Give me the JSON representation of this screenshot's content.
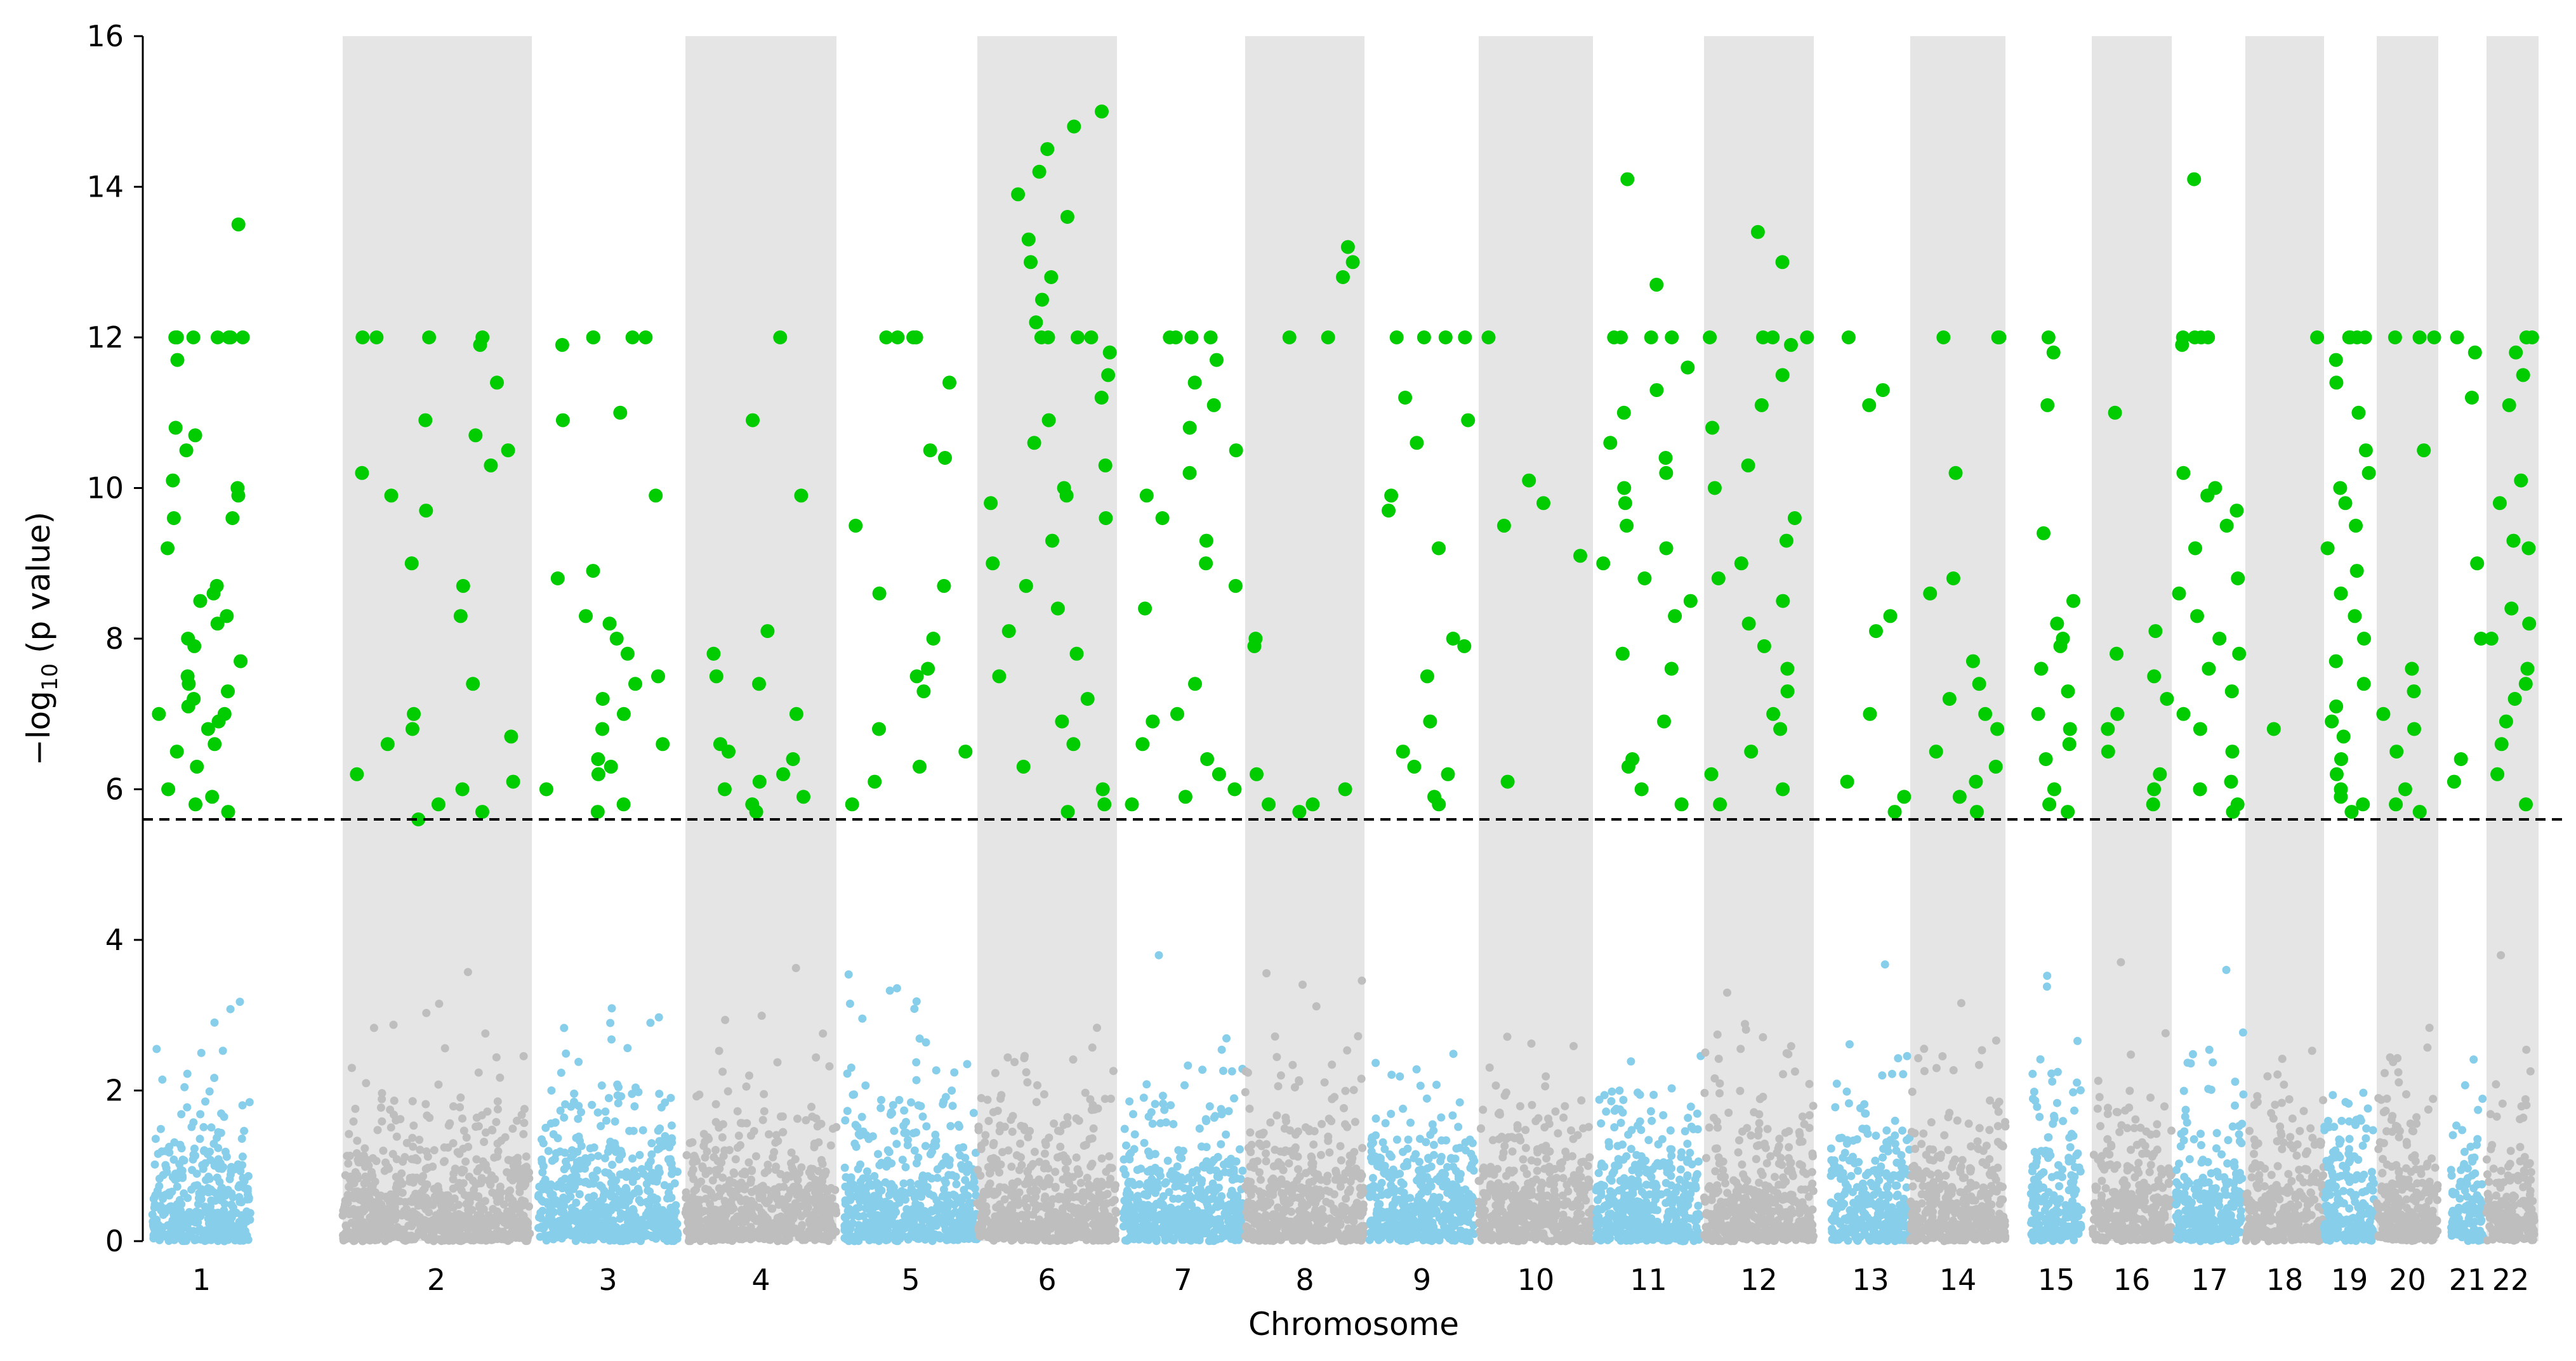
{
  "chart_data": {
    "type": "scatter",
    "subtype": "manhattan",
    "title": "",
    "xlabel": "Chromosome",
    "ylabel": "−log10 (p value)",
    "ylabel_parts": {
      "prefix": "−log",
      "subscript": "10",
      "suffix": " (p value)"
    },
    "ylim": [
      0,
      16
    ],
    "yticks": [
      "0",
      "2",
      "4",
      "6",
      "8",
      "10",
      "12",
      "14",
      "16"
    ],
    "threshold": 5.6,
    "threshold_style": "dashed",
    "chromosomes": [
      "1",
      "2",
      "3",
      "4",
      "5",
      "6",
      "7",
      "8",
      "9",
      "10",
      "11",
      "12",
      "13",
      "14",
      "15",
      "16",
      "17",
      "18",
      "19",
      "20",
      "21",
      "22"
    ],
    "colors": {
      "odd_chromosome": "#87ceeb",
      "even_chromosome": "#bebebe",
      "significant": "#00cc00",
      "band": "#e5e5e5",
      "threshold_line": "#000000"
    },
    "significant_points": [
      {
        "chr": "1",
        "values": [
          13.5,
          12.0,
          12.0,
          12.0,
          11.7,
          12.0,
          12.0,
          12.0,
          12.0,
          12.0,
          12.0,
          10.8,
          10.7,
          10.5,
          10.1,
          10.0,
          9.9,
          9.6,
          9.6,
          9.2,
          8.7,
          8.6,
          8.5,
          8.3,
          8.2,
          8.0,
          7.9,
          7.7,
          7.5,
          7.4,
          7.3,
          7.2,
          7.1,
          7.0,
          7.0,
          6.9,
          6.8,
          6.6,
          6.5,
          6.3,
          6.0,
          5.9,
          5.8,
          5.7
        ]
      },
      {
        "chr": "2",
        "values": [
          12.0,
          12.0,
          12.0,
          12.0,
          11.9,
          11.4,
          10.9,
          10.7,
          10.5,
          10.3,
          10.2,
          9.9,
          9.7,
          9.0,
          8.7,
          8.3,
          7.4,
          7.0,
          6.8,
          6.7,
          6.6,
          6.2,
          6.1,
          6.0,
          5.8,
          5.7,
          5.6
        ]
      },
      {
        "chr": "3",
        "values": [
          12.0,
          12.0,
          12.0,
          12.0,
          11.9,
          11.0,
          10.9,
          9.9,
          8.9,
          8.8,
          8.3,
          8.2,
          8.0,
          7.8,
          7.5,
          7.4,
          7.2,
          7.0,
          6.8,
          6.6,
          6.4,
          6.3,
          6.2,
          6.0,
          5.8,
          5.7
        ]
      },
      {
        "chr": "4",
        "values": [
          12.0,
          10.9,
          9.9,
          8.1,
          7.8,
          7.5,
          7.4,
          7.0,
          6.6,
          6.5,
          6.4,
          6.2,
          6.1,
          6.0,
          5.9,
          5.8,
          5.7
        ]
      },
      {
        "chr": "5",
        "values": [
          12.0,
          12.0,
          12.0,
          12.0,
          11.4,
          10.5,
          10.4,
          9.5,
          8.6,
          8.7,
          8.0,
          7.6,
          7.5,
          7.3,
          6.8,
          6.5,
          6.3,
          6.1,
          5.8
        ]
      },
      {
        "chr": "6",
        "values": [
          15.0,
          14.8,
          14.5,
          14.2,
          13.9,
          13.6,
          13.3,
          13.0,
          12.8,
          12.5,
          12.2,
          12.0,
          12.0,
          12.0,
          12.0,
          11.8,
          11.5,
          11.2,
          10.9,
          10.6,
          10.3,
          10.0,
          9.9,
          9.8,
          9.6,
          9.3,
          9.0,
          8.7,
          8.4,
          8.1,
          7.8,
          7.5,
          7.2,
          6.9,
          6.6,
          6.3,
          6.0,
          5.8,
          5.7
        ]
      },
      {
        "chr": "7",
        "values": [
          12.0,
          12.0,
          12.0,
          12.0,
          11.7,
          11.4,
          11.1,
          10.8,
          10.5,
          10.2,
          9.9,
          9.6,
          9.3,
          9.0,
          8.7,
          8.4,
          7.4,
          7.0,
          6.9,
          6.6,
          6.4,
          6.2,
          6.0,
          5.9,
          5.8
        ]
      },
      {
        "chr": "8",
        "values": [
          13.2,
          13.0,
          12.8,
          12.0,
          12.0,
          8.0,
          7.9,
          6.2,
          6.0,
          5.8,
          5.8,
          5.7
        ]
      },
      {
        "chr": "9",
        "values": [
          12.0,
          12.0,
          12.0,
          12.0,
          11.2,
          10.9,
          10.6,
          9.9,
          9.7,
          9.2,
          8.0,
          7.9,
          7.5,
          6.9,
          6.5,
          6.3,
          6.2,
          5.9,
          5.8
        ]
      },
      {
        "chr": "10",
        "values": [
          12.0,
          10.1,
          9.8,
          9.5,
          9.1,
          6.1
        ]
      },
      {
        "chr": "11",
        "values": [
          14.1,
          12.7,
          12.0,
          12.0,
          12.0,
          12.0,
          11.6,
          11.3,
          11.0,
          10.6,
          10.4,
          10.2,
          10.0,
          9.8,
          9.5,
          9.2,
          9.0,
          8.8,
          8.5,
          8.3,
          7.8,
          7.6,
          6.9,
          6.4,
          6.3,
          6.0,
          5.8
        ]
      },
      {
        "chr": "12",
        "values": [
          13.4,
          13.0,
          12.0,
          12.0,
          12.0,
          12.0,
          11.9,
          11.5,
          11.1,
          10.8,
          10.3,
          10.0,
          9.6,
          9.3,
          9.0,
          8.8,
          8.5,
          8.2,
          7.9,
          7.6,
          7.3,
          7.0,
          6.8,
          6.5,
          6.2,
          6.0,
          5.8
        ]
      },
      {
        "chr": "13",
        "values": [
          12.0,
          11.3,
          11.1,
          8.3,
          8.1,
          7.0,
          6.1,
          5.9,
          5.7
        ]
      },
      {
        "chr": "14",
        "values": [
          12.0,
          12.0,
          12.0,
          10.2,
          8.8,
          8.6,
          7.7,
          7.4,
          7.2,
          7.0,
          6.8,
          6.5,
          6.3,
          6.1,
          5.9,
          5.7
        ]
      },
      {
        "chr": "15",
        "values": [
          12.0,
          11.8,
          11.1,
          9.4,
          8.5,
          8.2,
          8.0,
          7.9,
          7.6,
          7.3,
          7.0,
          6.8,
          6.6,
          6.4,
          6.0,
          5.8,
          5.7
        ]
      },
      {
        "chr": "16",
        "values": [
          11.0,
          8.1,
          7.8,
          7.5,
          7.2,
          7.0,
          6.8,
          6.5,
          6.2,
          6.0,
          5.8
        ]
      },
      {
        "chr": "17",
        "values": [
          14.1,
          12.0,
          12.0,
          12.0,
          12.0,
          11.9,
          10.2,
          10.0,
          9.9,
          9.7,
          9.5,
          9.2,
          8.8,
          8.6,
          8.3,
          8.0,
          7.8,
          7.6,
          7.3,
          7.0,
          6.8,
          6.5,
          6.1,
          6.0,
          5.8,
          5.7
        ]
      },
      {
        "chr": "18",
        "values": [
          12.0,
          6.8
        ]
      },
      {
        "chr": "19",
        "values": [
          12.0,
          12.0,
          12.0,
          12.0,
          11.7,
          11.4,
          11.0,
          10.5,
          10.2,
          10.0,
          9.8,
          9.5,
          9.2,
          8.9,
          8.6,
          8.3,
          8.0,
          7.7,
          7.4,
          7.1,
          6.9,
          6.7,
          6.4,
          6.2,
          6.0,
          5.9,
          5.8,
          5.7
        ]
      },
      {
        "chr": "20",
        "values": [
          12.0,
          12.0,
          12.0,
          10.5,
          7.6,
          7.3,
          7.0,
          6.8,
          6.5,
          6.0,
          5.8,
          5.7
        ]
      },
      {
        "chr": "21",
        "values": [
          12.0,
          11.8,
          11.2,
          9.0,
          8.0,
          6.4,
          6.1
        ]
      },
      {
        "chr": "22",
        "values": [
          12.0,
          12.0,
          11.8,
          11.5,
          11.1,
          10.1,
          9.8,
          9.3,
          9.2,
          8.4,
          8.2,
          8.0,
          7.6,
          7.4,
          7.2,
          6.9,
          6.6,
          6.2,
          5.8
        ]
      }
    ]
  }
}
